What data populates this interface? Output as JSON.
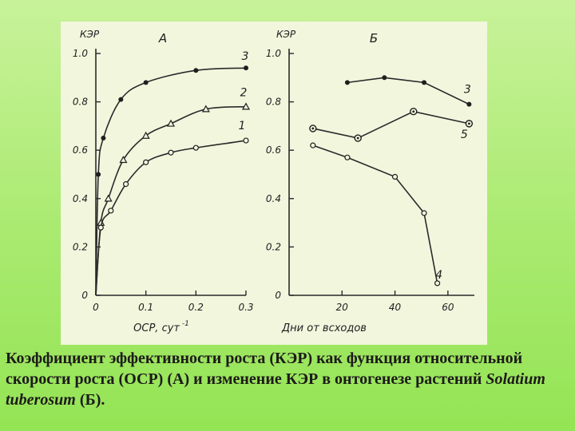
{
  "caption": {
    "part1": "Коэффициент эффективности роста (КЭР) как функция относительной скорости роста (ОСР) (А) и изменение КЭР в онтогенезе растений ",
    "species": "Solatium tuberosum",
    "part2": " (Б)."
  },
  "chart_data": [
    {
      "type": "line",
      "panel_label": "А",
      "ylabel": "КЭР",
      "xlabel": "ОСР, сут",
      "xlabel_sup": "-1",
      "xlim": [
        0,
        0.3
      ],
      "ylim": [
        0,
        1.0
      ],
      "xticks": [
        "0",
        "0.1",
        "0.2",
        "0.3"
      ],
      "yticks": [
        "0",
        "0.2",
        "0.4",
        "0.6",
        "0.8",
        "1.0"
      ],
      "grid": false,
      "series": [
        {
          "name": "3",
          "marker": "dot",
          "x": [
            0.0,
            0.005,
            0.015,
            0.05,
            0.1,
            0.2,
            0.3
          ],
          "y": [
            0.0,
            0.5,
            0.65,
            0.81,
            0.88,
            0.93,
            0.94
          ]
        },
        {
          "name": "2",
          "marker": "triangle",
          "x": [
            0.0,
            0.01,
            0.025,
            0.055,
            0.1,
            0.15,
            0.22,
            0.3
          ],
          "y": [
            0.0,
            0.3,
            0.4,
            0.56,
            0.66,
            0.71,
            0.77,
            0.78
          ]
        },
        {
          "name": "1",
          "marker": "circle",
          "x": [
            0.0,
            0.01,
            0.03,
            0.06,
            0.1,
            0.15,
            0.2,
            0.3
          ],
          "y": [
            0.0,
            0.28,
            0.35,
            0.46,
            0.55,
            0.59,
            0.61,
            0.64
          ]
        }
      ],
      "series_labels": [
        "3",
        "2",
        "1"
      ]
    },
    {
      "type": "line",
      "panel_label": "Б",
      "ylabel": "КЭР",
      "xlabel": "Дни от всходов",
      "xlim": [
        0,
        70
      ],
      "ylim": [
        0,
        1.0
      ],
      "xticks": [
        "20",
        "40",
        "60"
      ],
      "yticks": [
        "0",
        "0.2",
        "0.4",
        "0.6",
        "0.8",
        "1.0"
      ],
      "grid": false,
      "series": [
        {
          "name": "3",
          "marker": "dot",
          "x": [
            22,
            36,
            51,
            68
          ],
          "y": [
            0.88,
            0.9,
            0.88,
            0.79
          ]
        },
        {
          "name": "5",
          "marker": "circle-dot",
          "x": [
            9,
            26,
            47,
            68
          ],
          "y": [
            0.69,
            0.65,
            0.76,
            0.71
          ]
        },
        {
          "name": "4",
          "marker": "circle",
          "x": [
            9,
            22,
            40,
            51,
            56
          ],
          "y": [
            0.62,
            0.57,
            0.49,
            0.34,
            0.05
          ]
        }
      ],
      "series_labels": [
        "3",
        "5",
        "4"
      ]
    }
  ],
  "colors": {
    "ink": "#1f1f1f",
    "figure_bg": "#f1f6dd",
    "page_bg": "#a9ea6f"
  }
}
